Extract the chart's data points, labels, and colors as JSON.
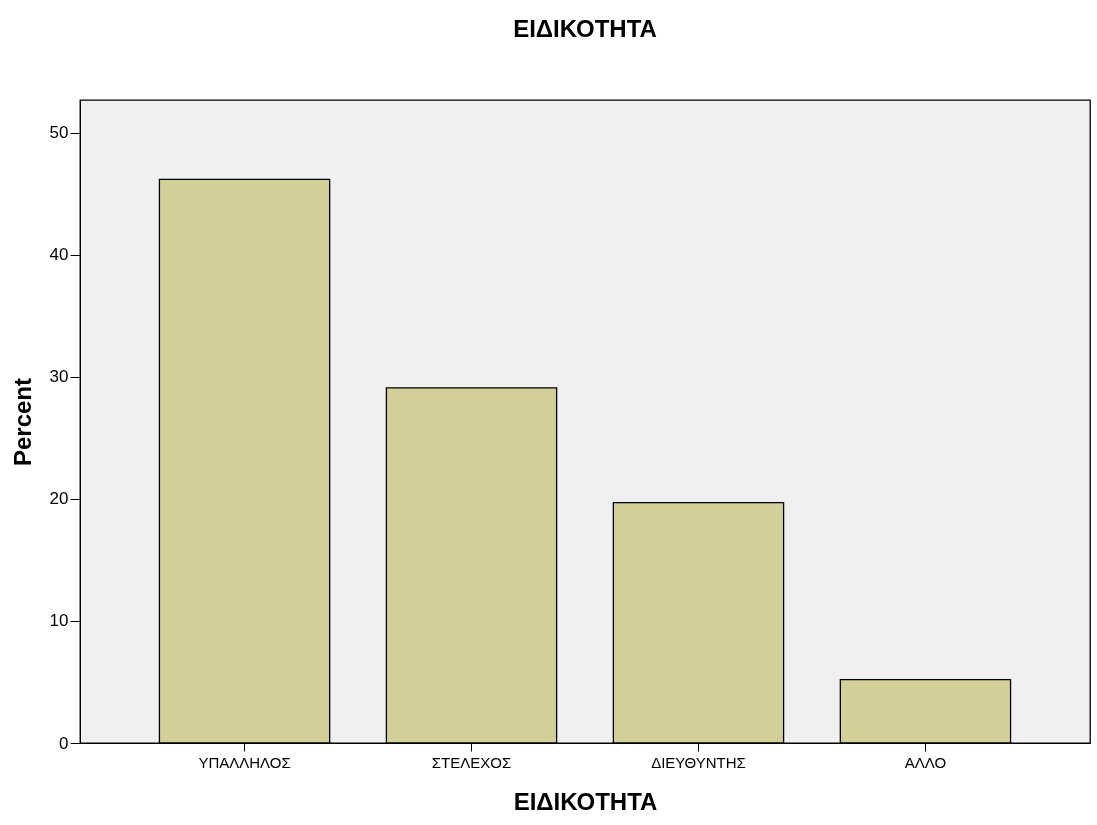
{
  "chart_data": {
    "type": "bar",
    "title": "ΕΙΔΙΚΟΤΗΤΑ",
    "xlabel": "ΕΙΔΙΚΟΤΗΤΑ",
    "ylabel": "Percent",
    "categories": [
      "ΥΠΑΛΛΗΛΟΣ",
      "ΣΤΕΛΕΧΟΣ",
      "ΔΙΕΥΘΥΝΤΗΣ",
      "ΑΛΛΟ"
    ],
    "values": [
      46.2,
      29.1,
      19.7,
      5.2
    ],
    "color": "#d3cf98",
    "ylim": [
      0,
      52.7
    ],
    "yticks": [
      0,
      10,
      20,
      30,
      40,
      50
    ],
    "grid": false
  }
}
